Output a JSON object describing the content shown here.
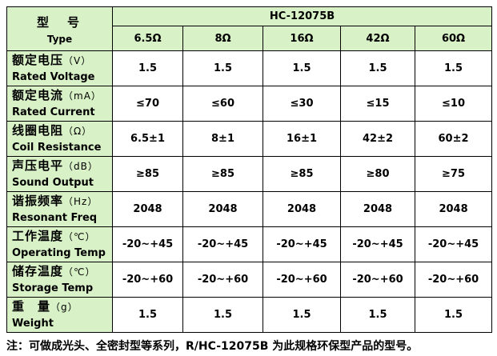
{
  "header": {
    "label_cn": "型　号",
    "label_en": "Type",
    "model": "HC-12075B",
    "columns": [
      "6.5Ω",
      "8Ω",
      "16Ω",
      "42Ω",
      "60Ω"
    ]
  },
  "rows": [
    {
      "cn": "额定电压",
      "unit": "（V）",
      "en": "Rated Voltage",
      "values": [
        "1.5",
        "1.5",
        "1.5",
        "1.5",
        "1.5"
      ]
    },
    {
      "cn": "额定电流",
      "unit": "（mA）",
      "en": "Rated Current",
      "values": [
        "≤70",
        "≤60",
        "≤30",
        "≤15",
        "≤10"
      ]
    },
    {
      "cn": "线圈电阻",
      "unit": "（Ω）",
      "en": "Coil Resistance",
      "values": [
        "6.5±1",
        "8±1",
        "16±1",
        "42±2",
        "60±2"
      ]
    },
    {
      "cn": "声压电平",
      "unit": "（dB）",
      "en": "Sound Output",
      "values": [
        "≥85",
        "≥85",
        "≥85",
        "≥80",
        "≥75"
      ]
    },
    {
      "cn": "谐振频率",
      "unit": "（Hz）",
      "en": "Resonant Freq",
      "values": [
        "2048",
        "2048",
        "2048",
        "2048",
        "2048"
      ]
    },
    {
      "cn": "工作温度",
      "unit": "（℃）",
      "en": "Operating Temp",
      "values": [
        "-20~+45",
        "-20~+45",
        "-20~+45",
        "-20~+45",
        "-20~+45"
      ]
    },
    {
      "cn": "储存温度",
      "unit": "（℃）",
      "en": "Storage Temp",
      "values": [
        "-20~+60",
        "-20~+60",
        "-20~+60",
        "-20~+60",
        "-20~+60"
      ]
    },
    {
      "cn": "重　量",
      "unit": "（g）",
      "en": "Weight",
      "values": [
        "1.5",
        "1.5",
        "1.5",
        "1.5",
        "1.5"
      ]
    }
  ],
  "note": "注：可做成光头、全密封型等系列，R/HC-12075B 为此规格环保型产品的型号。"
}
